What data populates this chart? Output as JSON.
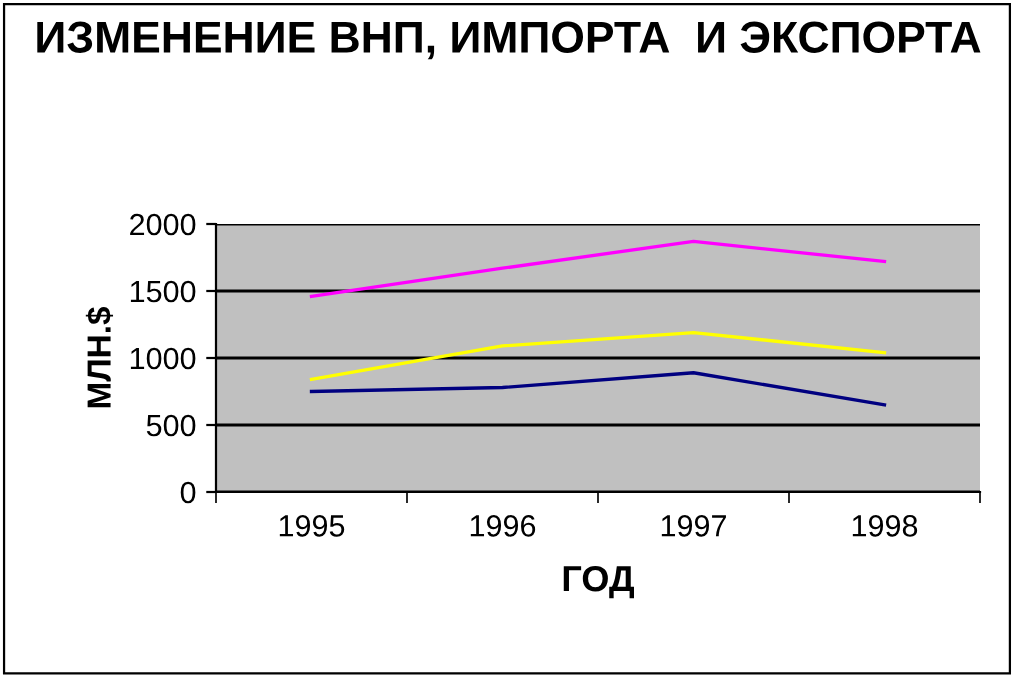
{
  "chart_data": {
    "type": "line",
    "title": "ИЗМЕНЕНИЕ ВНП, ИМПОРТА  И ЭКСПОРТА",
    "xlabel": "ГОД",
    "ylabel": "МЛН.$",
    "categories": [
      "1995",
      "1996",
      "1997",
      "1998"
    ],
    "series": [
      {
        "color": "#ff00ff",
        "values": [
          1460,
          1670,
          1870,
          1720
        ]
      },
      {
        "color": "#ffff00",
        "values": [
          840,
          1090,
          1190,
          1040
        ]
      },
      {
        "color": "#000080",
        "values": [
          750,
          780,
          890,
          650
        ]
      }
    ],
    "ylim": [
      0,
      2000
    ],
    "yticks": [
      0,
      500,
      1000,
      1500,
      2000
    ],
    "grid": "y",
    "legend": false,
    "marker": "none",
    "line_style": "solid"
  }
}
